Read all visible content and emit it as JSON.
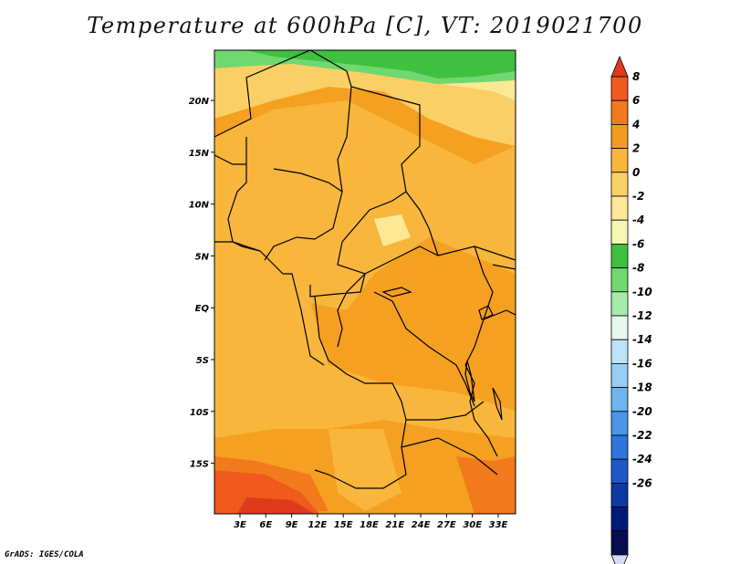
{
  "title": "Temperature at 600hPa [C], VT: 2019021700",
  "credit": "GrADS: IGES/COLA",
  "map": {
    "lon_labels": [
      "3E",
      "6E",
      "9E",
      "12E",
      "15E",
      "18E",
      "21E",
      "24E",
      "27E",
      "30E",
      "33E"
    ],
    "lat_labels": [
      "20N",
      "15N",
      "10N",
      "5N",
      "EQ",
      "5S",
      "10S",
      "15S"
    ]
  },
  "colorbar": {
    "labels": [
      "8",
      "6",
      "4",
      "2",
      "0",
      "-2",
      "-4",
      "-6",
      "-8",
      "-10",
      "-12",
      "-14",
      "-16",
      "-18",
      "-20",
      "-22",
      "-24",
      "-26"
    ],
    "colors": [
      "#e03a1c",
      "#f05a1c",
      "#f37a1c",
      "#f59a20",
      "#f8b63c",
      "#fad066",
      "#fde895",
      "#f8f6b4",
      "#40c040",
      "#70d870",
      "#a8eaa8",
      "#e4f8ec",
      "#bde3f8",
      "#96cdf4",
      "#6fb4ee",
      "#4a96e8",
      "#2c76dc",
      "#1c58c8",
      "#0c3aa4",
      "#001a78",
      "#080c50",
      "#d8d8f8"
    ]
  },
  "colors": {
    "deep_red": "#e03a1c",
    "orange": "#f5a020",
    "light_orange": "#f8b63c",
    "yellow": "#fde895",
    "green": "#40c040",
    "light_green": "#70d870",
    "border": "#000000"
  }
}
